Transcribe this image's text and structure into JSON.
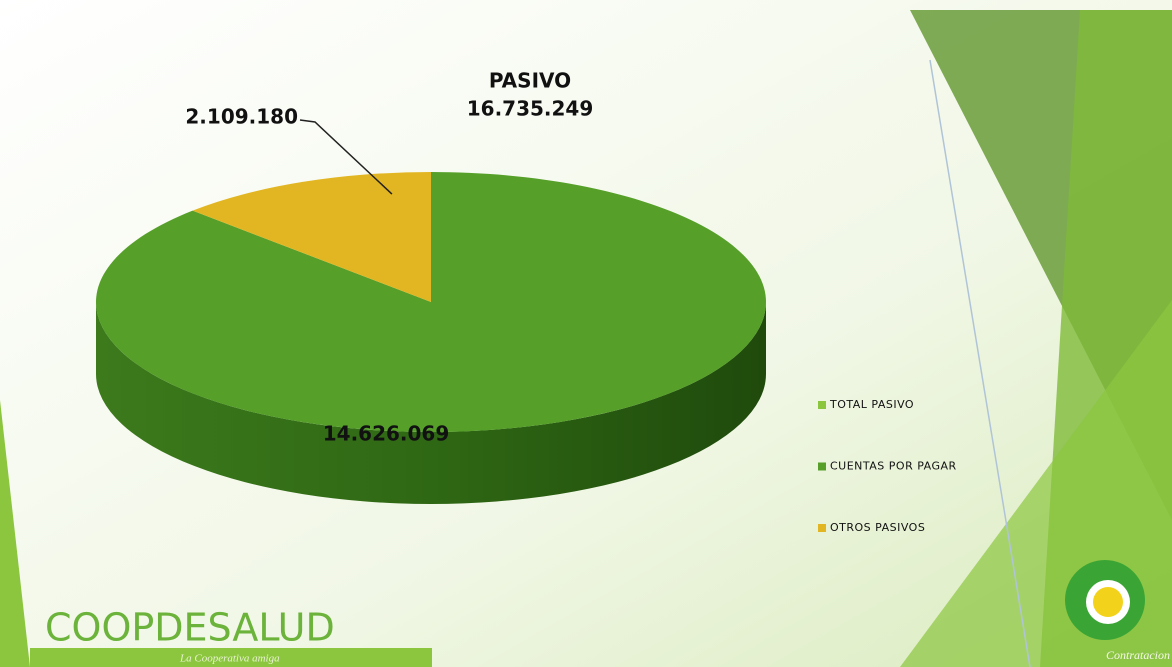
{
  "chart_data": {
    "type": "pie",
    "title": "PASIVO",
    "subtitle": "16.735.249",
    "categories": [
      "TOTAL PASIVO",
      "CUENTAS POR PAGAR",
      "OTROS PASIVOS"
    ],
    "values": [
      null,
      14626069,
      2109180
    ],
    "value_labels": [
      null,
      "14.626.069",
      "2.109.180"
    ],
    "colors": [
      "#8cc63f",
      "#56a02a",
      "#e2b623"
    ],
    "legend": "right"
  },
  "slide": {
    "brand": "COOPDESALUD",
    "tagline": "La Cooperativa amiga",
    "corner_text": "Contratacion"
  }
}
